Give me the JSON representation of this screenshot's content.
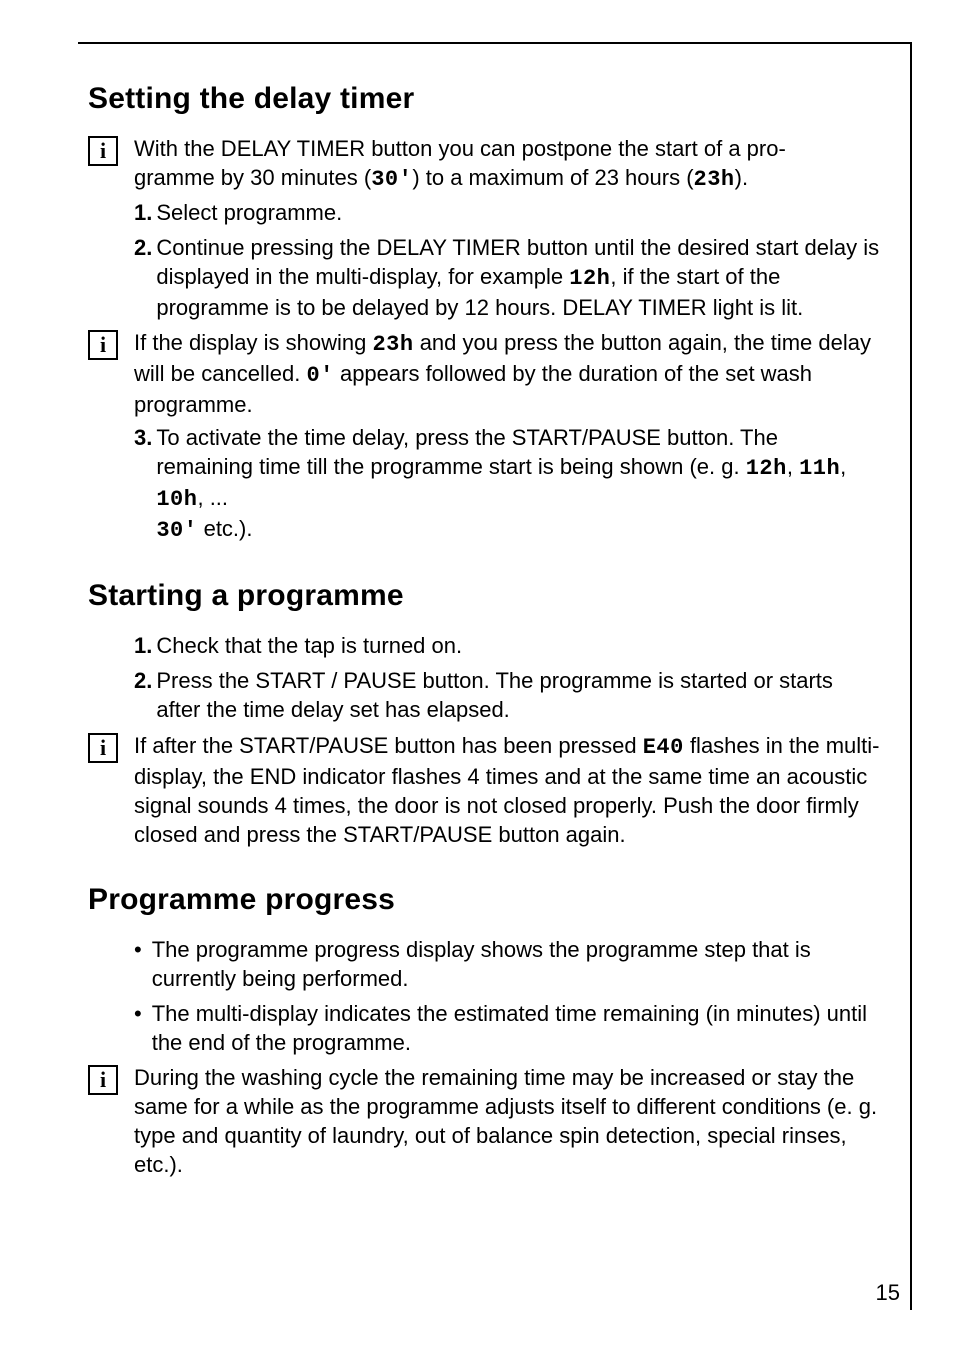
{
  "page_number": "15",
  "sections": {
    "delay": {
      "title": "Setting the delay timer",
      "intro_a": "With the DELAY TIMER button you can postpone the start of a pro-",
      "intro_b": "gramme by 30 minutes (",
      "intro_seg1": "30'",
      "intro_c": ") to a maximum of 23 hours (",
      "intro_seg2": "23h",
      "intro_d": ").",
      "step1_num": "1.",
      "step1": "Select programme.",
      "step2_num": "2.",
      "step2_a": "Continue pressing the DELAY TIMER button until the desired start delay is displayed in the multi-display, for example ",
      "step2_seg": "12h",
      "step2_b": ", if the start of the programme is to be delayed by 12 hours. DELAY TIMER light is lit.",
      "note2_a": "If the display is showing ",
      "note2_seg1": "23h",
      "note2_b": " and you press the button again, the time delay will be cancelled. ",
      "note2_seg2": "0'",
      "note2_c": "  appears followed by the duration of the set wash programme.",
      "step3_num": "3.",
      "step3_a": "To activate the time delay, press the START/PAUSE button. The remaining time till the programme start is being shown (e. g.  ",
      "step3_seg1": "12h",
      "step3_b": ",  ",
      "step3_seg2": "11h",
      "step3_c": ",  ",
      "step3_seg3": "10h",
      "step3_d": ", ... ",
      "step3_seg4": "30'",
      "step3_e": "  etc.)."
    },
    "start": {
      "title": "Starting a programme",
      "step1_num": "1.",
      "step1": "Check that the tap is turned on.",
      "step2_num": "2.",
      "step2": "Press the START / PAUSE button. The programme is started or starts after the time delay set has elapsed.",
      "note_a": "If after the START/PAUSE button has been pressed ",
      "note_seg": "E40",
      "note_b": " flashes in the multi-display, the END indicator flashes 4 times and at the same time an acoustic signal sounds 4 times, the door is not closed properly. Push the door firmly closed and press the START/PAUSE button again."
    },
    "progress": {
      "title": "Programme progress",
      "b1": "The programme progress display shows the programme step that is currently being performed.",
      "b2": "The multi-display indicates the estimated time remaining (in minutes) until the end of the programme.",
      "note": "During the washing cycle the remaining time may be increased or stay the same for a while as the programme adjusts itself to different conditions (e. g. type and quantity of laundry, out of balance spin detection, special rinses, etc.)."
    }
  }
}
